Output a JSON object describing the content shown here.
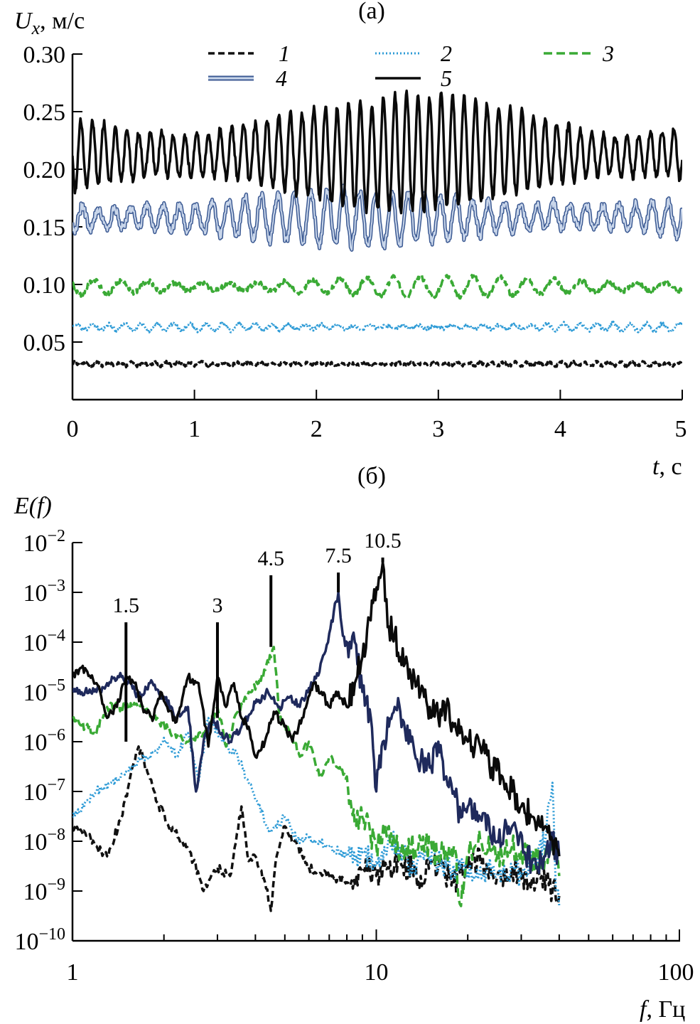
{
  "colors": {
    "c1": "#111111",
    "c2": "#2e9bd6",
    "c3": "#3aaa35",
    "c4_outer": "#3c5a93",
    "c4_inner": "#c9d6ea",
    "c5": "#0a0a0a",
    "c4_spectrum": "#1f2a5c"
  },
  "chart_data": [
    {
      "type": "line",
      "panel_label": "(а)",
      "ylabel_var": "U",
      "ylabel_sub": "x",
      "ylabel_unit": ", м/с",
      "xlabel_var": "t",
      "xlabel_unit": ", с",
      "xlim": [
        0,
        5
      ],
      "ylim": [
        0,
        0.3
      ],
      "xticks": [
        0,
        1,
        2,
        3,
        4,
        5
      ],
      "xtick_labels": [
        "0",
        "1",
        "2",
        "3",
        "4",
        "5"
      ],
      "yticks": [
        0.05,
        0.1,
        0.15,
        0.2,
        0.25,
        0.3
      ],
      "ytick_labels": [
        "0.05",
        "0.10",
        "0.15",
        "0.20",
        "0.25",
        "0.30"
      ],
      "legend": [
        "1",
        "2",
        "3",
        "4",
        "5"
      ],
      "legend_placement": "top",
      "series": [
        {
          "name": "1",
          "style": "dashed",
          "mean": 0.031,
          "amplitude": 0.0015,
          "frequency_hz": 10.5,
          "noise": 0.0012
        },
        {
          "name": "2",
          "style": "dotted",
          "mean": 0.063,
          "amplitude": 0.003,
          "frequency_hz": 7.5,
          "noise": 0.0015
        },
        {
          "name": "3",
          "style": "dashed",
          "mean": 0.098,
          "amplitude": 0.008,
          "frequency_hz": 4.5,
          "noise": 0.002
        },
        {
          "name": "4",
          "style": "double",
          "mean": 0.158,
          "amplitude": 0.022,
          "frequency_hz": 7.5,
          "noise": 0.004
        },
        {
          "name": "5",
          "style": "solid",
          "mean": 0.213,
          "amplitude": 0.045,
          "frequency_hz": 10.5,
          "noise": 0.003
        }
      ]
    },
    {
      "type": "line",
      "panel_label": "(б)",
      "ylabel": "E(f)",
      "xlabel_var": "f",
      "xlabel_unit": ", Гц",
      "xscale": "log",
      "yscale": "log",
      "xlim": [
        1,
        100
      ],
      "ylim": [
        1e-10,
        0.01
      ],
      "xticks": [
        1,
        10,
        100
      ],
      "xtick_labels": [
        "1",
        "10",
        "100"
      ],
      "yticks_exponents": [
        -2,
        -3,
        -4,
        -5,
        -6,
        -7,
        -8,
        -9,
        -10
      ],
      "ytick_base": "10",
      "peaks": [
        {
          "f": 1.5,
          "label": "1.5",
          "top": 0.00025
        },
        {
          "f": 3,
          "label": "3",
          "top": 0.00025
        },
        {
          "f": 4.5,
          "label": "4.5",
          "top": 0.0022
        },
        {
          "f": 7.5,
          "label": "7.5",
          "top": 0.0025
        },
        {
          "f": 10.5,
          "label": "10.5",
          "top": 0.005
        }
      ],
      "series": [
        {
          "name": "1",
          "style": "dashed",
          "points": [
            [
              1.0,
              1.8e-08
            ],
            [
              1.1,
              1.5e-08
            ],
            [
              1.2,
              8e-09
            ],
            [
              1.3,
              5e-09
            ],
            [
              1.45,
              3e-08
            ],
            [
              1.55,
              2e-07
            ],
            [
              1.65,
              8e-07
            ],
            [
              1.75,
              3e-07
            ],
            [
              1.9,
              6e-08
            ],
            [
              2.1,
              2e-08
            ],
            [
              2.3,
              1e-08
            ],
            [
              2.5,
              4e-09
            ],
            [
              2.7,
              1e-09
            ],
            [
              3.0,
              3e-09
            ],
            [
              3.3,
              2e-09
            ],
            [
              3.6,
              5e-08
            ],
            [
              3.8,
              4e-09
            ],
            [
              4.0,
              5e-09
            ],
            [
              4.3,
              1.5e-09
            ],
            [
              4.5,
              4e-10
            ],
            [
              4.7,
              5e-09
            ],
            [
              5.0,
              2e-08
            ],
            [
              5.5,
              8e-09
            ],
            [
              6.0,
              3e-09
            ],
            [
              7,
              2e-09
            ],
            [
              8,
              1.5e-09
            ],
            [
              9,
              3e-09
            ],
            [
              10,
              2e-09
            ],
            [
              12,
              4e-09
            ],
            [
              14,
              2e-09
            ],
            [
              16,
              3e-09
            ],
            [
              18,
              1.5e-09
            ],
            [
              20,
              3e-09
            ],
            [
              22,
              4e-09
            ],
            [
              25,
              2e-09
            ],
            [
              28,
              3e-09
            ],
            [
              32,
              1.5e-09
            ],
            [
              35,
              2e-09
            ],
            [
              38,
              1e-09
            ],
            [
              40,
              8e-10
            ]
          ]
        },
        {
          "name": "2",
          "style": "dotted",
          "points": [
            [
              1.0,
              3e-08
            ],
            [
              1.1,
              6e-08
            ],
            [
              1.2,
              1e-07
            ],
            [
              1.35,
              1.5e-07
            ],
            [
              1.5,
              2.5e-07
            ],
            [
              1.7,
              5e-07
            ],
            [
              1.9,
              6e-07
            ],
            [
              2.0,
              1.2e-06
            ],
            [
              2.2,
              5e-07
            ],
            [
              2.4,
              1.5e-06
            ],
            [
              2.6,
              1.5e-07
            ],
            [
              2.8,
              3e-06
            ],
            [
              3.0,
              1.5e-06
            ],
            [
              3.2,
              8e-07
            ],
            [
              3.5,
              5e-07
            ],
            [
              3.8,
              1.5e-07
            ],
            [
              4.1,
              5e-08
            ],
            [
              4.5,
              1.5e-08
            ],
            [
              5.0,
              3e-08
            ],
            [
              5.5,
              1e-08
            ],
            [
              6,
              1.2e-08
            ],
            [
              7,
              8e-09
            ],
            [
              8,
              5e-09
            ],
            [
              9,
              6e-09
            ],
            [
              10,
              4e-09
            ],
            [
              11,
              1.2e-08
            ],
            [
              12,
              8e-09
            ],
            [
              13,
              3e-09
            ],
            [
              15,
              5e-09
            ],
            [
              17,
              3e-09
            ],
            [
              20,
              2.5e-09
            ],
            [
              22,
              3e-09
            ],
            [
              25,
              2e-09
            ],
            [
              28,
              3e-09
            ],
            [
              30,
              2e-09
            ],
            [
              33,
              5e-09
            ],
            [
              36,
              1e-08
            ],
            [
              38,
              1.5e-07
            ],
            [
              39,
              1e-09
            ],
            [
              40,
              5e-10
            ]
          ]
        },
        {
          "name": "3",
          "style": "dashed",
          "points": [
            [
              1.0,
              3e-06
            ],
            [
              1.1,
              2e-06
            ],
            [
              1.2,
              1.5e-06
            ],
            [
              1.3,
              5e-06
            ],
            [
              1.5,
              5e-06
            ],
            [
              1.7,
              5e-06
            ],
            [
              1.9,
              3e-06
            ],
            [
              2.1,
              1.5e-06
            ],
            [
              2.4,
              1e-06
            ],
            [
              2.7,
              1.5e-06
            ],
            [
              2.9,
              3e-06
            ],
            [
              3.0,
              5e-06
            ],
            [
              3.2,
              8e-07
            ],
            [
              3.5,
              4e-06
            ],
            [
              3.8,
              1e-05
            ],
            [
              4.1,
              1.5e-05
            ],
            [
              4.5,
              5e-05
            ],
            [
              4.6,
              8e-05
            ],
            [
              4.8,
              3e-06
            ],
            [
              5.2,
              1.5e-06
            ],
            [
              5.6,
              5e-07
            ],
            [
              6,
              1e-06
            ],
            [
              6.5,
              2e-07
            ],
            [
              7,
              5e-07
            ],
            [
              8,
              2e-07
            ],
            [
              8.5,
              2e-08
            ],
            [
              9,
              3e-08
            ],
            [
              10,
              8e-09
            ],
            [
              11,
              2e-08
            ],
            [
              12,
              5e-09
            ],
            [
              14,
              1e-08
            ],
            [
              16,
              5e-09
            ],
            [
              18,
              8e-09
            ],
            [
              19,
              5e-10
            ],
            [
              20,
              6e-09
            ],
            [
              22,
              1e-08
            ],
            [
              25,
              5e-09
            ],
            [
              28,
              8e-09
            ],
            [
              32,
              5e-09
            ],
            [
              35,
              3e-09
            ],
            [
              38,
              1e-08
            ],
            [
              40,
              2e-09
            ]
          ]
        },
        {
          "name": "4",
          "style": "solid-navy",
          "points": [
            [
              1.0,
              1.2e-05
            ],
            [
              1.1,
              1e-05
            ],
            [
              1.2,
              1e-05
            ],
            [
              1.3,
              1.5e-05
            ],
            [
              1.45,
              2e-05
            ],
            [
              1.55,
              1.5e-05
            ],
            [
              1.65,
              8e-06
            ],
            [
              1.8,
              1.5e-05
            ],
            [
              2.0,
              8e-06
            ],
            [
              2.2,
              3e-06
            ],
            [
              2.4,
              5e-06
            ],
            [
              2.55,
              1e-07
            ],
            [
              2.7,
              1e-06
            ],
            [
              2.9,
              3e-06
            ],
            [
              3.1,
              1.5e-06
            ],
            [
              3.3,
              1e-06
            ],
            [
              3.6,
              2e-06
            ],
            [
              4.0,
              6e-06
            ],
            [
              4.4,
              1e-05
            ],
            [
              4.8,
              5e-06
            ],
            [
              5.2,
              8e-06
            ],
            [
              5.6,
              5e-06
            ],
            [
              6.0,
              1.2e-05
            ],
            [
              6.5,
              2.5e-05
            ],
            [
              7.0,
              0.00015
            ],
            [
              7.5,
              0.001
            ],
            [
              7.7,
              0.0002
            ],
            [
              8.1,
              5e-05
            ],
            [
              8.5,
              0.0001
            ],
            [
              9,
              1e-05
            ],
            [
              9.6,
              3e-06
            ],
            [
              10,
              1e-07
            ],
            [
              10.5,
              1e-06
            ],
            [
              11,
              2e-06
            ],
            [
              11.5,
              5e-06
            ],
            [
              12,
              4e-06
            ],
            [
              13,
              1e-06
            ],
            [
              14,
              4e-07
            ],
            [
              15,
              3e-07
            ],
            [
              16,
              1e-06
            ],
            [
              17,
              2e-07
            ],
            [
              18,
              1e-07
            ],
            [
              19,
              3e-08
            ],
            [
              20,
              5e-08
            ],
            [
              22,
              3e-08
            ],
            [
              25,
              1e-08
            ],
            [
              28,
              2e-08
            ],
            [
              31,
              5e-09
            ],
            [
              34,
              3e-09
            ],
            [
              36,
              5e-09
            ],
            [
              38,
              1e-08
            ],
            [
              40,
              5e-09
            ]
          ]
        },
        {
          "name": "5",
          "style": "solid",
          "points": [
            [
              1.0,
              2e-05
            ],
            [
              1.1,
              3e-05
            ],
            [
              1.2,
              1.5e-05
            ],
            [
              1.3,
              3e-06
            ],
            [
              1.4,
              5e-06
            ],
            [
              1.5,
              2e-05
            ],
            [
              1.6,
              1.5e-05
            ],
            [
              1.7,
              5e-06
            ],
            [
              1.85,
              3e-06
            ],
            [
              1.95,
              1e-05
            ],
            [
              2.05,
              5e-06
            ],
            [
              2.2,
              2.5e-06
            ],
            [
              2.4,
              2e-05
            ],
            [
              2.6,
              1.5e-05
            ],
            [
              2.8,
              8e-07
            ],
            [
              3.0,
              2e-05
            ],
            [
              3.2,
              5e-06
            ],
            [
              3.4,
              1.5e-05
            ],
            [
              3.6,
              3e-06
            ],
            [
              3.8,
              2e-06
            ],
            [
              4.0,
              5e-07
            ],
            [
              4.3,
              1e-06
            ],
            [
              4.6,
              4e-06
            ],
            [
              5.0,
              2e-06
            ],
            [
              5.3,
              1e-06
            ],
            [
              5.7,
              3e-06
            ],
            [
              6.2,
              1.5e-05
            ],
            [
              6.6,
              1e-05
            ],
            [
              7.0,
              5e-06
            ],
            [
              7.5,
              1e-05
            ],
            [
              8,
              5e-06
            ],
            [
              8.5,
              1.5e-05
            ],
            [
              9,
              5e-05
            ],
            [
              9.5,
              0.0003
            ],
            [
              10.2,
              0.002
            ],
            [
              10.5,
              0.004
            ],
            [
              10.9,
              0.0002
            ],
            [
              11.5,
              0.00015
            ],
            [
              12,
              5e-05
            ],
            [
              13,
              2e-05
            ],
            [
              14,
              1e-05
            ],
            [
              15,
              5e-06
            ],
            [
              16,
              3e-06
            ],
            [
              17,
              5e-06
            ],
            [
              18,
              2e-06
            ],
            [
              19,
              2e-06
            ],
            [
              20,
              1e-06
            ],
            [
              22,
              8e-07
            ],
            [
              24,
              3e-07
            ],
            [
              26,
              2e-07
            ],
            [
              28,
              1e-07
            ],
            [
              30,
              5e-08
            ],
            [
              33,
              3e-08
            ],
            [
              36,
              2e-08
            ],
            [
              38,
              1e-08
            ],
            [
              40,
              5e-09
            ]
          ]
        }
      ]
    }
  ]
}
